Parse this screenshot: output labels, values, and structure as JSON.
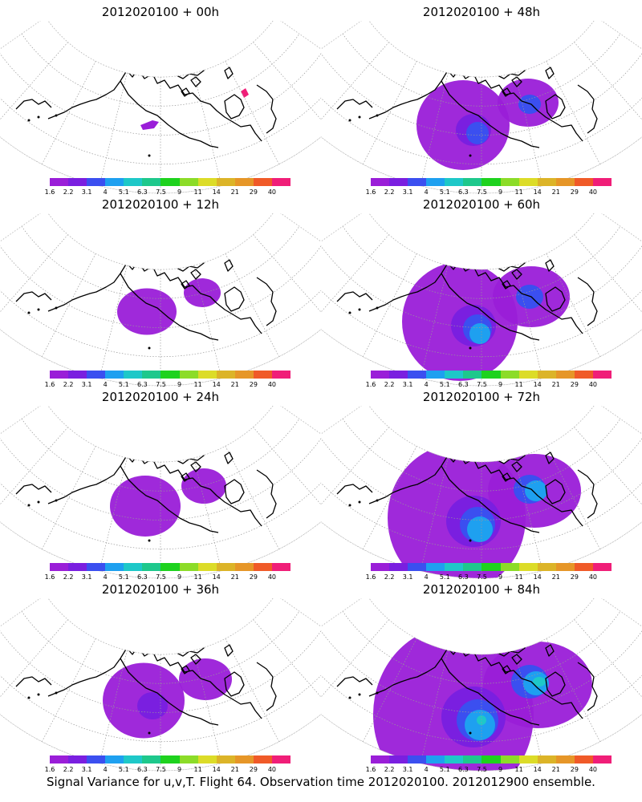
{
  "footer": "Signal Variance for u,v,T. Flight 64. Observation time 2012020100. 2012012900 ensemble.",
  "colorbar": {
    "colors": [
      "#9a1ed8",
      "#7a1fe0",
      "#3b4ff0",
      "#1ea0f0",
      "#1ec8c8",
      "#1ec88c",
      "#1ed21e",
      "#8cdc28",
      "#dcdc28",
      "#dcb428",
      "#e69628",
      "#f05a28",
      "#f01e78"
    ],
    "labels": [
      "1.6",
      "2.2",
      "3.1",
      "4",
      "5.1",
      "6.3",
      "7.5",
      "9",
      "11",
      "14",
      "21",
      "29",
      "40"
    ]
  },
  "panels": [
    {
      "title": "2012020100 + 00h",
      "signal_level": 0
    },
    {
      "title": "2012020100 + 48h",
      "signal_level": 2
    },
    {
      "title": "2012020100 + 12h",
      "signal_level": 0.5
    },
    {
      "title": "2012020100 + 60h",
      "signal_level": 3
    },
    {
      "title": "2012020100 + 24h",
      "signal_level": 1
    },
    {
      "title": "2012020100 + 72h",
      "signal_level": 4
    },
    {
      "title": "2012020100 + 36h",
      "signal_level": 1.5
    },
    {
      "title": "2012020100 + 84h",
      "signal_level": 5
    }
  ]
}
